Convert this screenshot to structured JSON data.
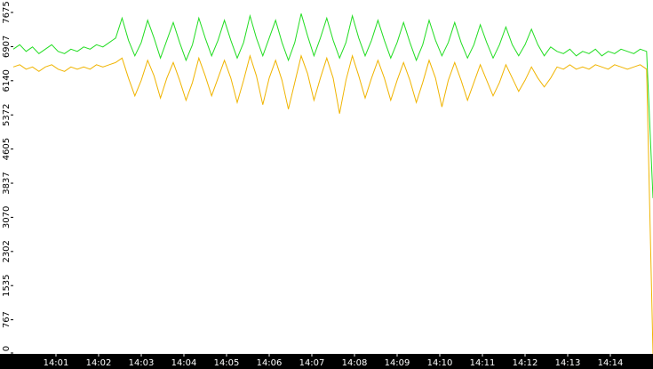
{
  "chart_data": {
    "type": "line",
    "x": [
      0,
      0.15,
      0.3,
      0.45,
      0.6,
      0.75,
      0.9,
      1.05,
      1.2,
      1.35,
      1.5,
      1.65,
      1.8,
      1.95,
      2.1,
      2.25,
      2.4,
      2.55,
      2.7,
      2.85,
      3,
      3.15,
      3.3,
      3.45,
      3.6,
      3.75,
      3.9,
      4.05,
      4.2,
      4.35,
      4.5,
      4.65,
      4.8,
      4.95,
      5.1,
      5.25,
      5.4,
      5.55,
      5.7,
      5.85,
      6,
      6.15,
      6.3,
      6.45,
      6.6,
      6.75,
      6.9,
      7.05,
      7.2,
      7.35,
      7.5,
      7.65,
      7.8,
      7.95,
      8.1,
      8.25,
      8.4,
      8.55,
      8.7,
      8.85,
      9,
      9.15,
      9.3,
      9.45,
      9.6,
      9.75,
      9.9,
      10.05,
      10.2,
      10.35,
      10.5,
      10.65,
      10.8,
      10.95,
      11.1,
      11.25,
      11.4,
      11.55,
      11.7,
      11.85,
      12,
      12.15,
      12.3,
      12.45,
      12.6,
      12.75,
      12.9,
      13.05,
      13.2,
      13.35,
      13.5,
      13.65,
      13.8,
      13.95,
      14.1,
      14.25,
      14.4,
      14.55,
      14.7,
      14.85,
      15
    ],
    "series": [
      {
        "color": "#22dd22",
        "values": [
          6850,
          6950,
          6800,
          6900,
          6750,
          6850,
          6950,
          6800,
          6750,
          6850,
          6800,
          6900,
          6850,
          6950,
          6900,
          7000,
          7100,
          7550,
          7050,
          6700,
          7000,
          7500,
          7100,
          6650,
          7050,
          7450,
          7000,
          6600,
          6950,
          7550,
          7100,
          6700,
          7050,
          7500,
          7050,
          6650,
          7000,
          7600,
          7100,
          6700,
          7100,
          7500,
          7000,
          6600,
          7000,
          7650,
          7150,
          6700,
          7100,
          7550,
          7050,
          6650,
          7000,
          7600,
          7100,
          6700,
          7050,
          7500,
          7050,
          6650,
          7000,
          7450,
          7000,
          6600,
          6950,
          7500,
          7050,
          6700,
          7000,
          7450,
          7000,
          6650,
          6950,
          7400,
          7000,
          6650,
          6950,
          7350,
          6950,
          6700,
          6950,
          7300,
          6950,
          6700,
          6900,
          6800,
          6750,
          6850,
          6700,
          6800,
          6750,
          6850,
          6700,
          6800,
          6750,
          6850,
          6800,
          6750,
          6850,
          6800,
          3500
        ]
      },
      {
        "color": "#f0b400",
        "values": [
          6450,
          6500,
          6400,
          6450,
          6350,
          6450,
          6500,
          6400,
          6350,
          6450,
          6400,
          6450,
          6400,
          6500,
          6450,
          6500,
          6550,
          6650,
          6200,
          5800,
          6150,
          6600,
          6250,
          5750,
          6200,
          6550,
          6150,
          5700,
          6100,
          6650,
          6250,
          5800,
          6200,
          6600,
          6200,
          5650,
          6150,
          6700,
          6250,
          5600,
          6200,
          6600,
          6150,
          5500,
          6100,
          6700,
          6300,
          5700,
          6200,
          6650,
          6200,
          5400,
          6150,
          6700,
          6250,
          5750,
          6200,
          6600,
          6200,
          5700,
          6150,
          6550,
          6150,
          5650,
          6100,
          6600,
          6200,
          5550,
          6150,
          6550,
          6150,
          5700,
          6100,
          6500,
          6150,
          5800,
          6100,
          6500,
          6200,
          5900,
          6150,
          6450,
          6200,
          6000,
          6200,
          6450,
          6400,
          6500,
          6400,
          6450,
          6400,
          6500,
          6450,
          6400,
          6500,
          6450,
          6400,
          6450,
          6500,
          6400,
          0
        ]
      }
    ],
    "xlim": [
      0,
      15
    ],
    "xticks": [
      {
        "value": 1,
        "label": "14:01"
      },
      {
        "value": 2,
        "label": "14:02"
      },
      {
        "value": 3,
        "label": "14:03"
      },
      {
        "value": 4,
        "label": "14:04"
      },
      {
        "value": 5,
        "label": "14:05"
      },
      {
        "value": 6,
        "label": "14:06"
      },
      {
        "value": 7,
        "label": "14:07"
      },
      {
        "value": 8,
        "label": "14:08"
      },
      {
        "value": 9,
        "label": "14:09"
      },
      {
        "value": 10,
        "label": "14:10"
      },
      {
        "value": 11,
        "label": "14:11"
      },
      {
        "value": 12,
        "label": "14:12"
      },
      {
        "value": 13,
        "label": "14:13"
      },
      {
        "value": 14,
        "label": "14:14"
      }
    ],
    "ylim": [
      0,
      7955
    ],
    "yticks": [
      0,
      767,
      1535,
      2302,
      3070,
      3837,
      4605,
      5372,
      6140,
      6907,
      7675
    ]
  }
}
